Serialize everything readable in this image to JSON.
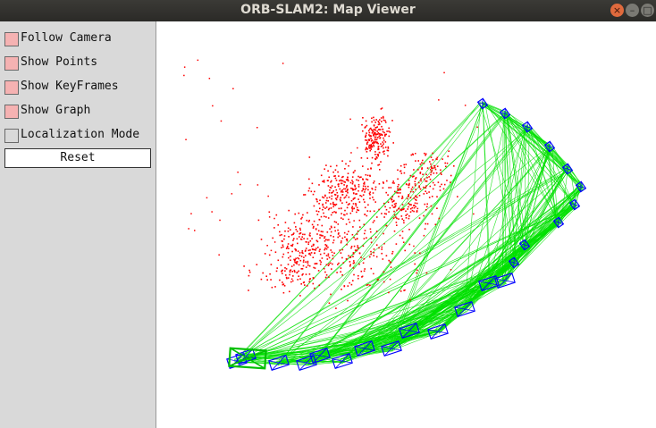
{
  "window": {
    "title": "ORB-SLAM2: Map Viewer",
    "controls": {
      "close": "×",
      "minimize": "–",
      "maximize": "□"
    }
  },
  "panel": {
    "options": [
      {
        "label": "Follow Camera",
        "checked": true
      },
      {
        "label": "Show Points",
        "checked": true
      },
      {
        "label": "Show KeyFrames",
        "checked": true
      },
      {
        "label": "Show Graph",
        "checked": true
      },
      {
        "label": "Localization Mode",
        "checked": false
      }
    ],
    "reset_label": "Reset"
  },
  "colors": {
    "map_points": "#ff0000",
    "keyframes": "#0000ff",
    "graph_edges": "#00e000",
    "current_camera": "#00c000",
    "checkbox_on": "#f5b2b2"
  }
}
